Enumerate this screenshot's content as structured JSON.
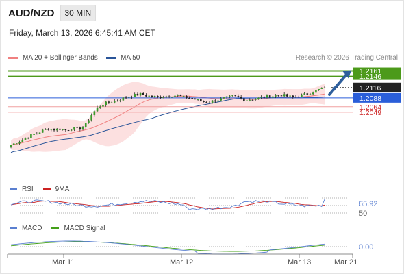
{
  "header": {
    "symbol": "AUD/NZD",
    "timeframe_button": "30 MIN",
    "datetime": "Friday, March 13, 2026 6:45:41 AM CET"
  },
  "legend": {
    "items": [
      {
        "label": "MA 20 + Bollinger Bands",
        "color": "#f08080"
      },
      {
        "label": "MA 50",
        "color": "#2a5599"
      }
    ],
    "source": "Research © 2026 Trading Central"
  },
  "colors": {
    "target_line": "#4c9a1a",
    "current_price_box": "#222222",
    "pivot_line": "#2a5ed9",
    "support_line": "#f0a0a0",
    "support_text": "#cc2222",
    "arrow": "#2e5f9c",
    "rsi": "#5a7fd0",
    "rsi_ma": "#cc2222",
    "macd": "#5a7fd0",
    "macd_signal": "#44a01a"
  },
  "chart_data": [
    {
      "type": "candlestick",
      "title": "AUD/NZD",
      "xlabel": "",
      "ylabel": "",
      "ylim": [
        1.1915,
        1.2175
      ],
      "x_ticks": [
        "Mar 11",
        "Mar 12",
        "Mar 13",
        "Mar 21"
      ],
      "close_path": [
        1.196,
        1.1968,
        1.1975,
        1.1985,
        1.199,
        1.1998,
        1.2005,
        1.2002,
        1.2004,
        1.2,
        1.2006,
        1.2003,
        1.2012,
        1.204,
        1.206,
        1.2072,
        1.2076,
        1.208,
        1.2085,
        1.2092,
        1.2095,
        1.2098,
        1.2094,
        1.2092,
        1.209,
        1.2092,
        1.2094,
        1.2095,
        1.209,
        1.2088,
        1.2084,
        1.2078,
        1.2076,
        1.208,
        1.2084,
        1.2088,
        1.2092,
        1.209,
        1.2082,
        1.2084,
        1.2086,
        1.209,
        1.2092,
        1.2094,
        1.2096,
        1.2092,
        1.209,
        1.2094,
        1.2098,
        1.2104,
        1.211,
        1.2116
      ],
      "key_levels": [
        {
          "value": 1.2161,
          "label": "1.2161",
          "kind": "target"
        },
        {
          "value": 1.2146,
          "label": "1.2146",
          "kind": "target"
        },
        {
          "value": 1.2116,
          "label": "1.2116",
          "kind": "last"
        },
        {
          "value": 1.2088,
          "label": "1.2088",
          "kind": "pivot"
        },
        {
          "value": 1.2064,
          "label": "1.2064",
          "kind": "support"
        },
        {
          "value": 1.2049,
          "label": "1.2049",
          "kind": "support"
        }
      ],
      "overlays": [
        "MA 20 + Bollinger Bands",
        "MA 50"
      ],
      "bullish_arrow_target": 1.2161
    },
    {
      "type": "line",
      "title": "RSI",
      "series": [
        {
          "name": "RSI"
        },
        {
          "name": "9MA"
        }
      ],
      "y_labels": [
        "65.92",
        "50"
      ],
      "last_value": 65.92
    },
    {
      "type": "line",
      "title": "MACD",
      "series": [
        {
          "name": "MACD"
        },
        {
          "name": "MACD Signal"
        }
      ],
      "y_labels": [
        "0.00"
      ],
      "last_value": 0.0
    }
  ],
  "panels": {
    "rsi": {
      "legend": [
        "RSI",
        "9MA"
      ]
    },
    "macd": {
      "legend": [
        "MACD",
        "MACD Signal"
      ]
    }
  }
}
